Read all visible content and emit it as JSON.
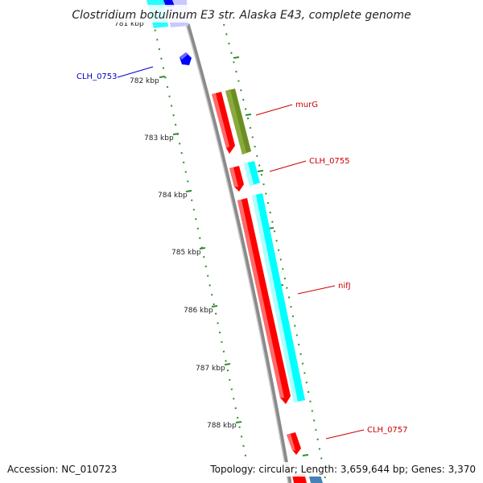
{
  "title": "Clostridium botulinum E3 str. Alaska E43, complete genome",
  "footer": {
    "accession": "Accession: NC_010723",
    "topology": "Topology: circular; Length: 3,659,644 bp; Genes: 3,370"
  },
  "colors": {
    "backbone": "#8a8a8a",
    "tick": "#2f8f2f",
    "red_gene": "#ff0000",
    "cyan_gene": "#00ffff",
    "olive_gene": "#6b8e23",
    "blue_gene": "#0000ff",
    "label_red": "#cc0000",
    "label_blue": "#0000cc"
  },
  "scale": {
    "unit": "kbp",
    "ticks": [
      {
        "label": "781 kbp"
      },
      {
        "label": "782 kbp"
      },
      {
        "label": "783 kbp"
      },
      {
        "label": "784 kbp"
      },
      {
        "label": "785 kbp"
      },
      {
        "label": "786 kbp"
      },
      {
        "label": "787 kbp"
      },
      {
        "label": "788 kbp"
      }
    ]
  },
  "gene_labels": [
    {
      "name": "CLH_0753",
      "color": "blue"
    },
    {
      "name": "murG",
      "color": "red"
    },
    {
      "name": "CLH_0755",
      "color": "red"
    },
    {
      "name": "nifJ",
      "color": "red"
    },
    {
      "name": "CLH_0757",
      "color": "red"
    }
  ]
}
